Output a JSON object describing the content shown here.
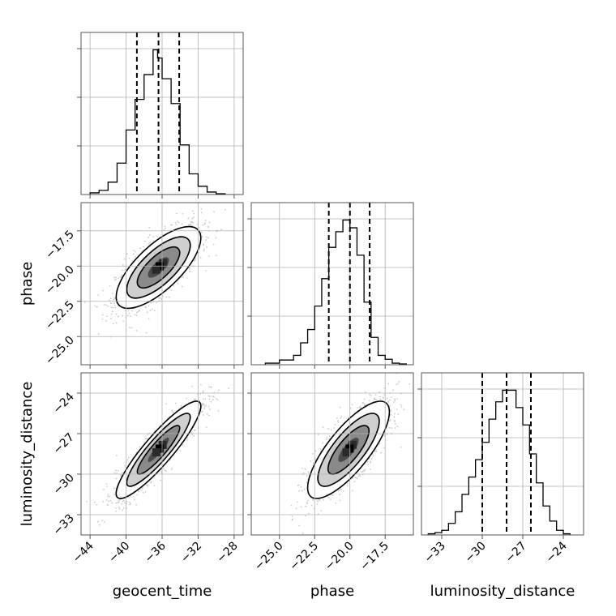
{
  "chart_data": {
    "type": "corner",
    "parameters": [
      "geocent_time",
      "phase",
      "luminosity_distance"
    ],
    "axis_labels": {
      "x": [
        "geocent_time",
        "phase",
        "luminosity_distance"
      ],
      "y": [
        "",
        "phase",
        "luminosity_distance"
      ]
    },
    "ranges": {
      "geocent_time": [
        -45.0,
        -27.0
      ],
      "phase": [
        -27.0,
        -15.5
      ],
      "luminosity_distance": [
        -34.5,
        -22.5
      ]
    },
    "ticks": {
      "geocent_time": [
        "−44",
        "−40",
        "−36",
        "−32",
        "−28"
      ],
      "phase": [
        "−25.0",
        "−22.5",
        "−20.0",
        "−17.5"
      ],
      "luminosity_distance": [
        "−33",
        "−30",
        "−27",
        "−24"
      ]
    },
    "tick_values": {
      "geocent_time": [
        -44,
        -40,
        -36,
        -32,
        -28
      ],
      "phase": [
        -25.0,
        -22.5,
        -20.0,
        -17.5
      ],
      "luminosity_distance": [
        -33,
        -30,
        -27,
        -24
      ]
    },
    "quantiles": {
      "geocent_time": [
        -38.8,
        -36.4,
        -34.1
      ],
      "phase": [
        -21.5,
        -20.0,
        -18.6
      ],
      "luminosity_distance": [
        -30.0,
        -28.2,
        -26.4
      ]
    },
    "histograms": {
      "geocent_time": {
        "bin_edges": [
          -44.0,
          -43.0,
          -42.0,
          -41.0,
          -40.0,
          -39.0,
          -38.0,
          -37.0,
          -36.5,
          -36.0,
          -35.0,
          -34.0,
          -33.0,
          -32.0,
          -31.0,
          -30.0,
          -29.0
        ],
        "counts": [
          2,
          5,
          15,
          38,
          78,
          115,
          145,
          175,
          165,
          140,
          110,
          60,
          25,
          10,
          3,
          1
        ]
      },
      "phase": {
        "bin_edges": [
          -26.0,
          -25.0,
          -24.0,
          -23.5,
          -23.0,
          -22.5,
          -22.0,
          -21.5,
          -21.0,
          -20.5,
          -20.0,
          -19.5,
          -19.0,
          -18.5,
          -18.0,
          -17.5,
          -17.0,
          -16.5,
          -16.0
        ],
        "counts": [
          2,
          6,
          12,
          28,
          45,
          75,
          110,
          150,
          170,
          185,
          175,
          140,
          80,
          35,
          12,
          7,
          2,
          1
        ]
      },
      "luminosity_distance": {
        "bin_edges": [
          -34.0,
          -33.5,
          -33.0,
          -32.5,
          -32.0,
          -31.5,
          -31.0,
          -30.5,
          -30.0,
          -29.5,
          -29.0,
          -28.5,
          -28.0,
          -27.5,
          -27.0,
          -26.5,
          -26.0,
          -25.5,
          -25.0,
          -24.5,
          -24.0,
          -23.5
        ],
        "counts": [
          1,
          2,
          4,
          10,
          20,
          35,
          50,
          65,
          80,
          100,
          115,
          125,
          125,
          110,
          95,
          70,
          45,
          25,
          12,
          4,
          1
        ]
      }
    },
    "pairs": [
      {
        "x": "geocent_time",
        "y": "phase",
        "mean": [
          -36.4,
          -20.1
        ],
        "sd": [
          2.35,
          1.45
        ],
        "corr": 0.72
      },
      {
        "x": "geocent_time",
        "y": "luminosity_distance",
        "mean": [
          -36.4,
          -28.2
        ],
        "sd": [
          2.35,
          1.8
        ],
        "corr": 0.9
      },
      {
        "x": "phase",
        "y": "luminosity_distance",
        "mean": [
          -20.1,
          -28.2
        ],
        "sd": [
          1.45,
          1.8
        ],
        "corr": 0.78
      }
    ],
    "contour_levels_sigma": [
      0.5,
      1.0,
      1.5,
      2.0
    ],
    "grid": true,
    "colors": {
      "axes": "#555555",
      "grid": "#b0b0b0",
      "line": "#000000",
      "points": "#a0a0a0",
      "fill": "#ffffff",
      "density": "#000000"
    }
  }
}
